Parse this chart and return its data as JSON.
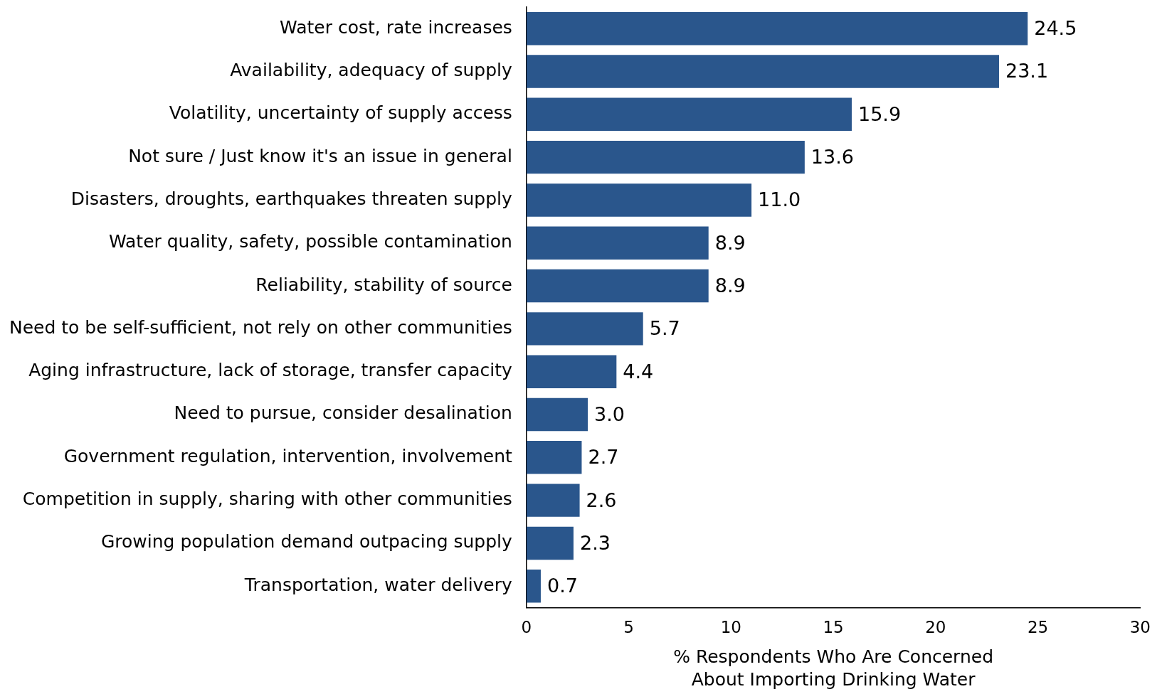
{
  "chart_data": {
    "type": "bar",
    "orientation": "horizontal",
    "categories": [
      "Water cost, rate increases",
      "Availability, adequacy of supply",
      "Volatility, uncertainty of supply access",
      "Not sure / Just know it's an issue in general",
      "Disasters, droughts, earthquakes threaten supply",
      "Water quality, safety, possible contamination",
      "Reliability, stability of source",
      "Need to be self-sufficient, not rely on other communities",
      "Aging infrastructure, lack of storage, transfer capacity",
      "Need to pursue, consider desalination",
      "Government regulation, intervention, involvement",
      "Competition in supply, sharing with other communities",
      "Growing population demand outpacing supply",
      "Transportation, water delivery"
    ],
    "values": [
      24.5,
      23.1,
      15.9,
      13.6,
      11.0,
      8.9,
      8.9,
      5.7,
      4.4,
      3.0,
      2.7,
      2.6,
      2.3,
      0.7
    ],
    "value_labels": [
      "24.5",
      "23.1",
      "15.9",
      "13.6",
      "11.0",
      "8.9",
      "8.9",
      "5.7",
      "4.4",
      "3.0",
      "2.7",
      "2.6",
      "2.3",
      "0.7"
    ],
    "color": "#2a568c",
    "xlabel": "% Respondents Who Are Concerned\nAbout Importing Drinking Water",
    "xlim": [
      0,
      30
    ],
    "xticks": [
      0,
      5,
      10,
      15,
      20,
      25,
      30
    ]
  }
}
